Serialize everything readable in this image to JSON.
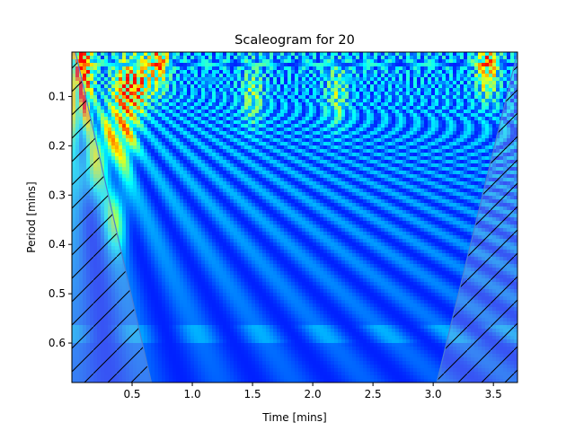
{
  "chart_data": {
    "type": "heatmap",
    "title": "Scaleogram for 20",
    "xlabel": "Time [mins]",
    "ylabel": "Period [mins]",
    "xlim": [
      0.0,
      3.7
    ],
    "ylim": [
      0.68,
      0.01
    ],
    "y_inverted": true,
    "x_ticks": [
      {
        "value": 0.5,
        "label": "0.5"
      },
      {
        "value": 1.0,
        "label": "1.0"
      },
      {
        "value": 1.5,
        "label": "1.5"
      },
      {
        "value": 2.0,
        "label": "2.0"
      },
      {
        "value": 2.5,
        "label": "2.5"
      },
      {
        "value": 3.0,
        "label": "3.0"
      },
      {
        "value": 3.5,
        "label": "3.5"
      }
    ],
    "y_ticks": [
      {
        "value": 0.1,
        "label": "0.1"
      },
      {
        "value": 0.2,
        "label": "0.2"
      },
      {
        "value": 0.3,
        "label": "0.3"
      },
      {
        "value": 0.4,
        "label": "0.4"
      },
      {
        "value": 0.5,
        "label": "0.5"
      },
      {
        "value": 0.6,
        "label": "0.6"
      }
    ],
    "colormap": [
      "#00007f",
      "#0000ff",
      "#007fff",
      "#00ffff",
      "#7fff7f",
      "#ffff00",
      "#ff7f00",
      "#ff0000"
    ],
    "cone_of_influence": {
      "left_edge": [
        [
          0.03,
          0.01
        ],
        [
          0.66,
          0.68
        ]
      ],
      "right_edge": [
        [
          3.7,
          0.01
        ],
        [
          3.03,
          0.68
        ]
      ],
      "hatch": "diagonal"
    },
    "hotspots": [
      {
        "x": 0.08,
        "y": 0.03,
        "intensity": 1.0
      },
      {
        "x": 0.08,
        "y": 0.12,
        "intensity": 0.75
      },
      {
        "x": 0.42,
        "y": 0.09,
        "intensity": 0.7
      },
      {
        "x": 0.55,
        "y": 0.08,
        "intensity": 0.72
      },
      {
        "x": 0.45,
        "y": 0.19,
        "intensity": 0.6
      },
      {
        "x": 0.3,
        "y": 0.19,
        "intensity": 0.55
      },
      {
        "x": 0.15,
        "y": 0.25,
        "intensity": 0.5
      },
      {
        "x": 0.38,
        "y": 0.34,
        "intensity": 0.5
      },
      {
        "x": 0.72,
        "y": 0.03,
        "intensity": 0.7
      },
      {
        "x": 3.45,
        "y": 0.04,
        "intensity": 0.75
      },
      {
        "x": 1.5,
        "y": 0.1,
        "intensity": 0.4
      },
      {
        "x": 2.2,
        "y": 0.1,
        "intensity": 0.38
      }
    ]
  }
}
